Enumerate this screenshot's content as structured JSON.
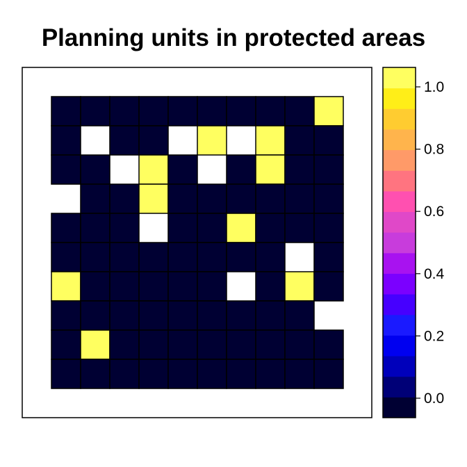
{
  "chart_data": {
    "type": "heatmap",
    "title": "Planning units in protected areas",
    "xlabel": "",
    "ylabel": "",
    "legend": {
      "placement": "right",
      "ticks": [
        "0.0",
        "0.2",
        "0.4",
        "0.6",
        "0.8",
        "1.0"
      ],
      "tick_values": [
        0.0,
        0.2,
        0.4,
        0.6,
        0.8,
        1.0
      ],
      "range": [
        -0.0625,
        1.0625
      ],
      "colors": [
        "#000033",
        "#000077",
        "#0000BB",
        "#0000F0",
        "#1A1AFF",
        "#4600FF",
        "#7B00FF",
        "#A812F0",
        "#C83CDC",
        "#E048C8",
        "#FF50B0",
        "#FF7480",
        "#FF9A68",
        "#FFB44C",
        "#FFCC30",
        "#FFEE18",
        "#FFFF60"
      ]
    },
    "rows": 10,
    "cols": 10,
    "values": [
      [
        0,
        0,
        0,
        0,
        0,
        0,
        0,
        0,
        0,
        1
      ],
      [
        0,
        null,
        0,
        0,
        null,
        1,
        null,
        1,
        0,
        0
      ],
      [
        0,
        0,
        null,
        1,
        0,
        null,
        0,
        1,
        0,
        0
      ],
      [
        null,
        0,
        0,
        1,
        0,
        0,
        0,
        0,
        0,
        0
      ],
      [
        0,
        0,
        0,
        null,
        0,
        0,
        1,
        0,
        0,
        0
      ],
      [
        0,
        0,
        0,
        0,
        0,
        0,
        0,
        0,
        null,
        0
      ],
      [
        1,
        0,
        0,
        0,
        0,
        0,
        null,
        0,
        1,
        0
      ],
      [
        0,
        0,
        0,
        0,
        0,
        0,
        0,
        0,
        0,
        null
      ],
      [
        0,
        1,
        0,
        0,
        0,
        0,
        0,
        0,
        0,
        0
      ],
      [
        0,
        0,
        0,
        0,
        0,
        0,
        0,
        0,
        0,
        0
      ]
    ]
  }
}
